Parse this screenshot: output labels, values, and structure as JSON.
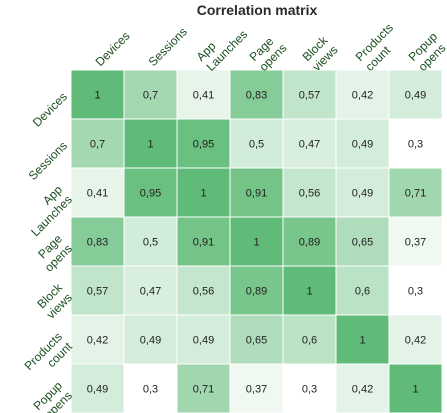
{
  "chart_data": {
    "type": "heatmap",
    "title": "Correlation matrix",
    "row_labels": [
      [
        "Devices"
      ],
      [
        "Sessions"
      ],
      [
        "App",
        "Launches"
      ],
      [
        "Page",
        "opens"
      ],
      [
        "Block",
        "views"
      ],
      [
        "Products",
        "count"
      ],
      [
        "Popup",
        "opens"
      ]
    ],
    "col_labels": [
      [
        "Devices"
      ],
      [
        "Sessions"
      ],
      [
        "App",
        "Launches"
      ],
      [
        "Page",
        "opens"
      ],
      [
        "Block",
        "views"
      ],
      [
        "Products",
        "count"
      ],
      [
        "Popup",
        "opens"
      ]
    ],
    "values": [
      [
        1,
        0.7,
        0.41,
        0.83,
        0.57,
        0.42,
        0.49
      ],
      [
        0.7,
        1,
        0.95,
        0.5,
        0.47,
        0.49,
        0.3
      ],
      [
        0.41,
        0.95,
        1,
        0.91,
        0.56,
        0.49,
        0.71
      ],
      [
        0.83,
        0.5,
        0.91,
        1,
        0.89,
        0.65,
        0.37
      ],
      [
        0.57,
        0.47,
        0.56,
        0.89,
        1,
        0.6,
        0.3
      ],
      [
        0.42,
        0.49,
        0.49,
        0.65,
        0.6,
        1,
        0.42
      ],
      [
        0.49,
        0.3,
        0.71,
        0.37,
        0.3,
        0.42,
        1
      ]
    ],
    "value_labels": [
      [
        "1",
        "0,7",
        "0,41",
        "0,83",
        "0,57",
        "0,42",
        "0,49"
      ],
      [
        "0,7",
        "1",
        "0,95",
        "0,5",
        "0,47",
        "0,49",
        "0,3"
      ],
      [
        "0,41",
        "0,95",
        "1",
        "0,91",
        "0,56",
        "0,49",
        "0,71"
      ],
      [
        "0,83",
        "0,5",
        "0,91",
        "1",
        "0,89",
        "0,65",
        "0,37"
      ],
      [
        "0,57",
        "0,47",
        "0,56",
        "0,89",
        "1",
        "0,6",
        "0,3"
      ],
      [
        "0,42",
        "0,49",
        "0,49",
        "0,65",
        "0,6",
        "1",
        "0,42"
      ],
      [
        "0,49",
        "0,3",
        "0,71",
        "0,37",
        "0,3",
        "0,42",
        "1"
      ]
    ],
    "color_low": "#ffffff",
    "color_high": "#5fbb77",
    "value_range": [
      0.3,
      1
    ],
    "label_color": "#1a4f1f",
    "grid": true,
    "legend": "none"
  }
}
